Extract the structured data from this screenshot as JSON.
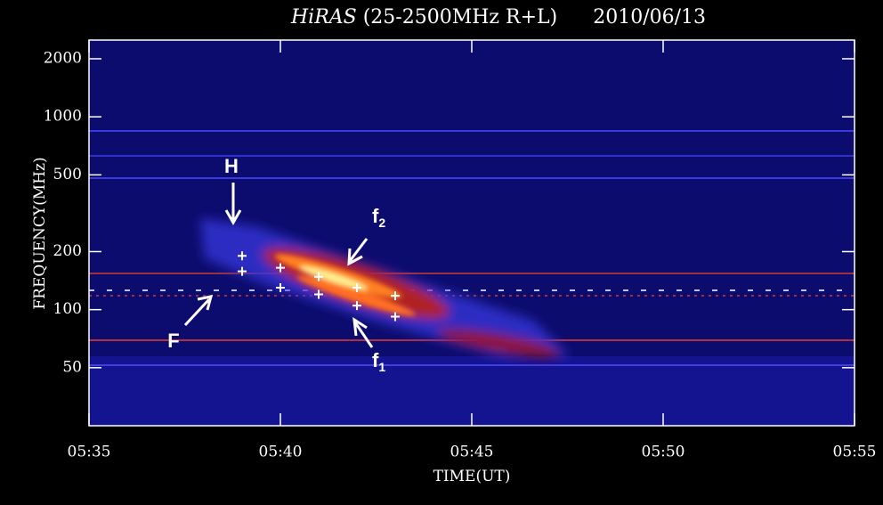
{
  "chart_data": {
    "type": "spectrogram",
    "title": {
      "instrument": "HiRAS",
      "range": "(25-2500MHz R+L)",
      "date": "2010/06/13"
    },
    "x_label": "TIME(UT)",
    "y_label": "FREQUENCY(MHz)",
    "xlim": [
      335,
      355
    ],
    "xticks": [
      {
        "value": 335,
        "label": "05:35"
      },
      {
        "value": 340,
        "label": "05:40"
      },
      {
        "value": 345,
        "label": "05:45"
      },
      {
        "value": 350,
        "label": "05:50"
      },
      {
        "value": 355,
        "label": "05:55"
      }
    ],
    "ylim": [
      25,
      2500
    ],
    "y_scale": "log",
    "yticks": [
      50,
      100,
      200,
      500,
      1000,
      2000
    ],
    "series": [
      {
        "color": "#ffffff",
        "x": [
          339,
          340,
          341,
          342,
          343
        ],
        "values": [
          190,
          165,
          148,
          130,
          118
        ]
      },
      {
        "color": "#ffffff",
        "x": [
          339,
          340,
          341,
          342,
          343
        ],
        "values": [
          158,
          130,
          120,
          105,
          92
        ]
      }
    ],
    "annotations": [
      {
        "text": "H"
      },
      {
        "text": "F"
      },
      {
        "text": "f",
        "subscript": "2"
      },
      {
        "text": "f",
        "subscript": "1"
      }
    ]
  }
}
